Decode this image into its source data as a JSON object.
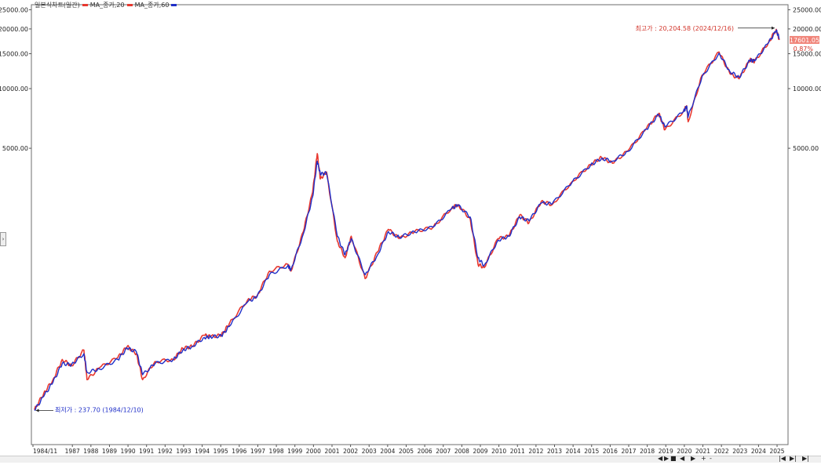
{
  "legend": {
    "base": "일본식차트(일간)",
    "items": [
      {
        "label": "MA_종가,20",
        "color": "#e8382f"
      },
      {
        "label": "MA_종가,60",
        "color": "#1f2fc8"
      }
    ]
  },
  "chart_data": {
    "type": "line",
    "y_scale": "log",
    "ylim": [
      220,
      26500
    ],
    "y_ticks": [
      {
        "value": 25000,
        "label": "25000.00"
      },
      {
        "value": 20000,
        "label": "20000.00"
      },
      {
        "value": 15000,
        "label": "15000.00"
      },
      {
        "value": 10000,
        "label": "10000.00"
      },
      {
        "value": 5000,
        "label": "5000.00"
      }
    ],
    "x_ticks": [
      "1984/11",
      "1987",
      "1988",
      "1989",
      "1990",
      "1991",
      "1992",
      "1993",
      "1994",
      "1995",
      "1996",
      "1997",
      "1998",
      "1999",
      "2000",
      "2001",
      "2002",
      "2003",
      "2004",
      "2005",
      "2006",
      "2007",
      "2008",
      "2009",
      "2010",
      "2011",
      "2012",
      "2013",
      "2014",
      "2015",
      "2016",
      "2017",
      "2018",
      "2019",
      "2020",
      "2021",
      "2022",
      "2023",
      "2024",
      "2025"
    ],
    "series": [
      {
        "name": "MA_종가,20",
        "color": "#e8382f",
        "points": [
          [
            "1984-12",
            240
          ],
          [
            "1985-06",
            290
          ],
          [
            "1985-12",
            340
          ],
          [
            "1986-06",
            430
          ],
          [
            "1986-12",
            400
          ],
          [
            "1987-08",
            480
          ],
          [
            "1987-10",
            340
          ],
          [
            "1988-06",
            390
          ],
          [
            "1989-06",
            440
          ],
          [
            "1989-12",
            500
          ],
          [
            "1990-06",
            460
          ],
          [
            "1990-10",
            340
          ],
          [
            "1991-06",
            420
          ],
          [
            "1992-06",
            430
          ],
          [
            "1992-12",
            490
          ],
          [
            "1993-06",
            500
          ],
          [
            "1994-02",
            570
          ],
          [
            "1994-06",
            560
          ],
          [
            "1995-01",
            570
          ],
          [
            "1995-06",
            650
          ],
          [
            "1996-06",
            860
          ],
          [
            "1996-12",
            900
          ],
          [
            "1997-08",
            1200
          ],
          [
            "1998-08",
            1300
          ],
          [
            "1998-10",
            1200
          ],
          [
            "1999-06",
            1900
          ],
          [
            "1999-12",
            3000
          ],
          [
            "2000-03",
            4700
          ],
          [
            "2000-05",
            3500
          ],
          [
            "2000-09",
            3800
          ],
          [
            "2001-04",
            1700
          ],
          [
            "2001-09",
            1400
          ],
          [
            "2002-01",
            1800
          ],
          [
            "2002-10",
            1100
          ],
          [
            "2003-06",
            1500
          ],
          [
            "2004-01",
            1950
          ],
          [
            "2004-08",
            1750
          ],
          [
            "2005-06",
            1900
          ],
          [
            "2006-06",
            2000
          ],
          [
            "2007-06",
            2500
          ],
          [
            "2007-10",
            2600
          ],
          [
            "2008-06",
            2200
          ],
          [
            "2008-11",
            1300
          ],
          [
            "2009-03",
            1250
          ],
          [
            "2009-12",
            1750
          ],
          [
            "2010-07",
            1800
          ],
          [
            "2011-02",
            2300
          ],
          [
            "2011-08",
            2100
          ],
          [
            "2012-04",
            2700
          ],
          [
            "2012-11",
            2600
          ],
          [
            "2013-12",
            3400
          ],
          [
            "2014-12",
            4150
          ],
          [
            "2015-07",
            4500
          ],
          [
            "2016-02",
            4200
          ],
          [
            "2016-12",
            4850
          ],
          [
            "2017-12",
            6300
          ],
          [
            "2018-08",
            7500
          ],
          [
            "2018-12",
            6200
          ],
          [
            "2019-12",
            7700
          ],
          [
            "2020-02",
            8200
          ],
          [
            "2020-03",
            6800
          ],
          [
            "2020-12",
            11700
          ],
          [
            "2021-11",
            15300
          ],
          [
            "2022-06",
            11900
          ],
          [
            "2022-12",
            11200
          ],
          [
            "2023-07",
            14000
          ],
          [
            "2023-10",
            13700
          ],
          [
            "2024-07",
            17100
          ],
          [
            "2024-12",
            19900
          ],
          [
            "2025-02",
            17600
          ]
        ]
      },
      {
        "name": "MA_종가,60",
        "color": "#1f2fc8",
        "points": [
          [
            "1984-12",
            238
          ],
          [
            "1985-06",
            280
          ],
          [
            "1985-12",
            330
          ],
          [
            "1986-06",
            410
          ],
          [
            "1986-12",
            405
          ],
          [
            "1987-08",
            460
          ],
          [
            "1987-10",
            370
          ],
          [
            "1988-06",
            385
          ],
          [
            "1989-06",
            430
          ],
          [
            "1989-12",
            490
          ],
          [
            "1990-06",
            470
          ],
          [
            "1990-10",
            360
          ],
          [
            "1991-06",
            410
          ],
          [
            "1992-06",
            430
          ],
          [
            "1992-12",
            480
          ],
          [
            "1993-06",
            500
          ],
          [
            "1994-02",
            555
          ],
          [
            "1994-06",
            560
          ],
          [
            "1995-01",
            565
          ],
          [
            "1995-06",
            630
          ],
          [
            "1996-06",
            840
          ],
          [
            "1996-12",
            890
          ],
          [
            "1997-08",
            1150
          ],
          [
            "1998-08",
            1280
          ],
          [
            "1998-10",
            1220
          ],
          [
            "1999-06",
            1850
          ],
          [
            "1999-12",
            2850
          ],
          [
            "2000-03",
            4300
          ],
          [
            "2000-05",
            3700
          ],
          [
            "2000-09",
            3750
          ],
          [
            "2001-04",
            1800
          ],
          [
            "2001-09",
            1450
          ],
          [
            "2002-01",
            1750
          ],
          [
            "2002-10",
            1150
          ],
          [
            "2003-06",
            1450
          ],
          [
            "2004-01",
            1900
          ],
          [
            "2004-08",
            1780
          ],
          [
            "2005-06",
            1890
          ],
          [
            "2006-06",
            2000
          ],
          [
            "2007-06",
            2480
          ],
          [
            "2007-10",
            2580
          ],
          [
            "2008-06",
            2250
          ],
          [
            "2008-11",
            1400
          ],
          [
            "2009-03",
            1280
          ],
          [
            "2009-12",
            1720
          ],
          [
            "2010-07",
            1800
          ],
          [
            "2011-02",
            2250
          ],
          [
            "2011-08",
            2150
          ],
          [
            "2012-04",
            2650
          ],
          [
            "2012-11",
            2620
          ],
          [
            "2013-12",
            3380
          ],
          [
            "2014-12",
            4120
          ],
          [
            "2015-07",
            4450
          ],
          [
            "2016-02",
            4300
          ],
          [
            "2016-12",
            4820
          ],
          [
            "2017-12",
            6250
          ],
          [
            "2018-08",
            7400
          ],
          [
            "2018-12",
            6400
          ],
          [
            "2019-12",
            7650
          ],
          [
            "2020-02",
            8100
          ],
          [
            "2020-03",
            7200
          ],
          [
            "2020-12",
            11500
          ],
          [
            "2021-11",
            15100
          ],
          [
            "2022-06",
            12200
          ],
          [
            "2022-12",
            11400
          ],
          [
            "2023-07",
            13900
          ],
          [
            "2023-10",
            13800
          ],
          [
            "2024-07",
            17000
          ],
          [
            "2024-12",
            19600
          ],
          [
            "2025-02",
            18000
          ]
        ]
      }
    ],
    "annotations": {
      "high": {
        "label": "최고가 : 20,204.58 (2024/12/16)",
        "value": 20204.58,
        "date": "2024-12-16"
      },
      "low": {
        "label": "최저가 : 237.70 (1984/12/10)",
        "value": 237.7,
        "date": "1984-12-10"
      },
      "current": {
        "label": "17601.05",
        "value": 17601.05
      },
      "change": {
        "label": "0.87%"
      }
    }
  },
  "ui": {
    "side_tab_glyph": "›",
    "nav_buttons": [
      "◀",
      "▶",
      "■",
      "◀",
      "▶",
      "+",
      "-",
      "|◀",
      "▶|",
      "▶|"
    ]
  }
}
